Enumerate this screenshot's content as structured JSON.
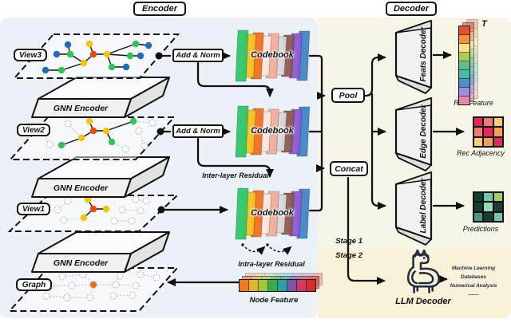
{
  "titles": {
    "encoder": "Encoder",
    "decoder": "Decoder"
  },
  "encoder": {
    "view_labels": [
      "View3",
      "View2",
      "View1",
      "Graph"
    ],
    "gnn_encoder_label": "GNN Encoder",
    "add_norm_label": "Add & Norm",
    "codebook_label": "Codebook",
    "inter_layer_residual_label": "Inter-layer Residual",
    "intra_layer_residual_label": "Intra-layer Residual",
    "node_feature_label": "Node Feature",
    "codebook_colors": [
      "#2FC768",
      "#F4C31D",
      "#F26F22",
      "#FAE7DE",
      "#F2AC99",
      "#D6D8DD",
      "#8F5A4F",
      "#8D5BD4",
      "#4186C6"
    ],
    "node_feature_colors": [
      "#F3791F",
      "#E2B322",
      "#A0C83A",
      "#35AF4A",
      "#2E9FA8",
      "#7D53A8",
      "#D63866",
      "#D8292E"
    ]
  },
  "decoder": {
    "pool_label": "Pool",
    "concat_label": "Concat",
    "feats_decoder_label": "Feats Decoder",
    "edge_decoder_label": "Edge Decoder",
    "label_decoder_label": "Label Decoder",
    "transpose_label": "T",
    "rec_feature_label": "Rec Feature",
    "rec_adjacency_label": "Rec Adjacency",
    "predictions_label": "Predictions",
    "rec_feature_colors": [
      "#E4502E",
      "#F0913C",
      "#F5E287",
      "#ABCF55",
      "#5BC18E",
      "#46B8AE",
      "#4E8FD0",
      "#9D90D8",
      "#E787AC"
    ],
    "rec_adjacency_rows": [
      [
        "#E72560",
        "#F07B76",
        "#F5CF6B"
      ],
      [
        "#F07B76",
        "#E72560",
        "#F0A254"
      ],
      [
        "#F5CF6B",
        "#F0A254",
        "#E72560"
      ]
    ],
    "predictions_rows": [
      [
        "#153F33",
        "#74C6A4",
        "#A5CE56"
      ],
      [
        "#153F33",
        "#92D8B9",
        "#153F33"
      ],
      [
        "#46997F",
        "#153F33",
        "#74C6A4"
      ]
    ]
  },
  "stages": {
    "stage1_label": "Stage 1",
    "stage2_label": "Stage 2"
  },
  "llm": {
    "decoder_label": "LLM Decoder",
    "output_lines": [
      "Machine Learning",
      "Databases",
      "Numerical Analysis",
      "——"
    ]
  },
  "colors": {
    "ink": "#111111",
    "panel-blue": "#ECF1F7",
    "panel-cream": "#F5F4E6",
    "panel-sand": "#FAF2D8",
    "node-blue": "#1E6FB8",
    "node-green": "#2FC353",
    "node-yellow": "#F7C600",
    "node-red": "#F2470F",
    "node-orange": "#F96B1C",
    "navy": "#1F2A44",
    "slab-front": "#F1F1F1",
    "slab-top": "#FBFBFB",
    "slab-side": "#E2E2E2"
  }
}
